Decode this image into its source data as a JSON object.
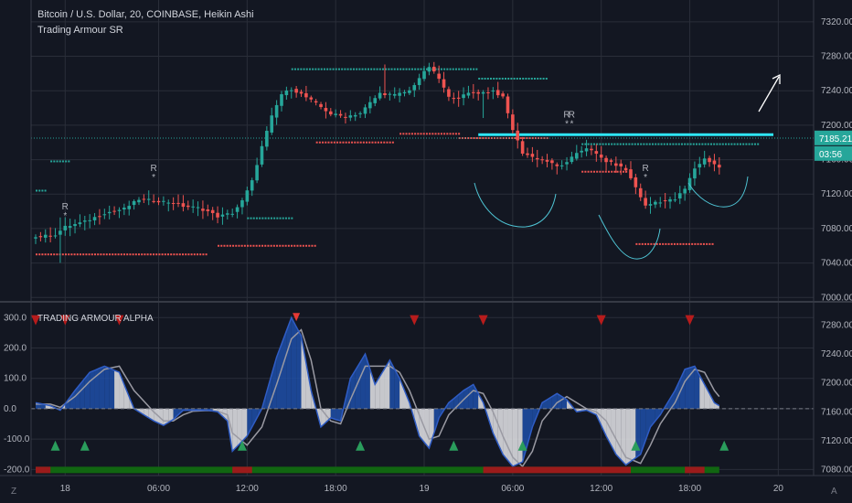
{
  "header": {
    "symbol": "Bitcoin / U.S. Dollar, 20, COINBASE, Heikin Ashi",
    "indicator": "Trading Armour SR"
  },
  "osc_panel": {
    "title": "TRADING ARMOUR ALPHA"
  },
  "price_badges": {
    "last_price": "7185.21",
    "countdown": "03:56",
    "cut_label": "7"
  },
  "corner": {
    "left": "Z",
    "right": "A"
  },
  "colors": {
    "background": "#131722",
    "grid": "#2a2e39",
    "bull": "#26a69a",
    "bear": "#ef5350",
    "dots_bull": "#26a69a",
    "dots_bear": "#ef5350",
    "fill_blue": "#1e4fa8",
    "fill_white": "#e6e6ea",
    "accent_cyan": "#2ee6f5",
    "signal_up": "#2a9d5c",
    "signal_down": "#b71c1c",
    "bar_green": "#116611",
    "bar_red": "#9b1b1b"
  },
  "chart_data": [
    {
      "type": "candlestick",
      "style": "Heikin Ashi",
      "timeframe": "20",
      "y_ticks": [
        7000,
        7040,
        7080,
        7120,
        7160,
        7200,
        7240,
        7280,
        7320
      ],
      "y_tick_labels": [
        "7000.00",
        "7040.00",
        "7080.00",
        "7120.00",
        "7160.00",
        "7200.00",
        "7240.00",
        "7280.00",
        "7320.00"
      ],
      "ylim": [
        6995,
        7340
      ],
      "x_tick_labels": [
        "18",
        "06:00",
        "12:00",
        "18:00",
        "19",
        "06:00",
        "12:00",
        "18:00",
        "20"
      ],
      "x_tick_index": [
        6,
        25,
        43,
        61,
        79,
        97,
        115,
        133,
        151
      ],
      "num_bars": 140,
      "last_price": 7185.21,
      "anchors": [
        [
          0,
          7070
        ],
        [
          4,
          7073
        ],
        [
          6,
          7082
        ],
        [
          10,
          7088
        ],
        [
          14,
          7098
        ],
        [
          18,
          7103
        ],
        [
          21,
          7114
        ],
        [
          25,
          7112
        ],
        [
          28,
          7110
        ],
        [
          30,
          7106
        ],
        [
          33,
          7104
        ],
        [
          35,
          7100
        ],
        [
          37,
          7094
        ],
        [
          40,
          7098
        ],
        [
          42,
          7112
        ],
        [
          44,
          7135
        ],
        [
          46,
          7175
        ],
        [
          48,
          7210
        ],
        [
          50,
          7236
        ],
        [
          52,
          7242
        ],
        [
          54,
          7236
        ],
        [
          57,
          7225
        ],
        [
          60,
          7213
        ],
        [
          63,
          7210
        ],
        [
          66,
          7214
        ],
        [
          68,
          7226
        ],
        [
          70,
          7237
        ],
        [
          73,
          7235
        ],
        [
          76,
          7240
        ],
        [
          78,
          7255
        ],
        [
          80,
          7268
        ],
        [
          82,
          7254
        ],
        [
          84,
          7232
        ],
        [
          86,
          7232
        ],
        [
          88,
          7237
        ],
        [
          91,
          7238
        ],
        [
          93,
          7240
        ],
        [
          95,
          7232
        ],
        [
          97,
          7195
        ],
        [
          99,
          7168
        ],
        [
          101,
          7163
        ],
        [
          104,
          7158
        ],
        [
          106,
          7152
        ],
        [
          108,
          7156
        ],
        [
          110,
          7168
        ],
        [
          112,
          7174
        ],
        [
          114,
          7166
        ],
        [
          116,
          7158
        ],
        [
          118,
          7154
        ],
        [
          120,
          7148
        ],
        [
          122,
          7128
        ],
        [
          124,
          7106
        ],
        [
          126,
          7111
        ],
        [
          128,
          7112
        ],
        [
          130,
          7114
        ],
        [
          132,
          7126
        ],
        [
          134,
          7150
        ],
        [
          136,
          7161
        ],
        [
          138,
          7155
        ],
        [
          140,
          7146
        ],
        [
          142,
          7140
        ],
        [
          143,
          7143
        ],
        [
          145,
          7154
        ],
        [
          147,
          7172
        ],
        [
          149,
          7185
        ]
      ],
      "sr_resistance": [
        {
          "from": 0,
          "to": 2,
          "price": 7124
        },
        {
          "from": 3,
          "to": 7,
          "price": 7158
        },
        {
          "from": 43,
          "to": 52,
          "price": 7092
        },
        {
          "from": 52,
          "to": 90,
          "price": 7265
        },
        {
          "from": 90,
          "to": 104,
          "price": 7254
        },
        {
          "from": 111,
          "to": 147,
          "price": 7178
        }
      ],
      "sr_support": [
        {
          "from": 0,
          "to": 35,
          "price": 7050
        },
        {
          "from": 37,
          "to": 57,
          "price": 7060
        },
        {
          "from": 57,
          "to": 73,
          "price": 7180
        },
        {
          "from": 74,
          "to": 86,
          "price": 7190
        },
        {
          "from": 86,
          "to": 104,
          "price": 7185
        },
        {
          "from": 111,
          "to": 120,
          "price": 7146
        },
        {
          "from": 122,
          "to": 138,
          "price": 7062
        }
      ],
      "sr_markers": [
        {
          "index": 6,
          "price": 7085,
          "label": "R"
        },
        {
          "index": 24,
          "price": 7130,
          "label": "R"
        },
        {
          "index": 108,
          "price": 7192,
          "label": "R"
        },
        {
          "index": 109,
          "price": 7192,
          "label": "R"
        },
        {
          "index": 124,
          "price": 7130,
          "label": "R"
        }
      ],
      "horizontal_line": {
        "price": 7189,
        "from": 90,
        "to": 150
      },
      "dotted_line": {
        "price": 7185
      }
    },
    {
      "type": "area",
      "title": "TRADING ARMOUR ALPHA",
      "y_ticks": [
        -200,
        -100,
        0,
        100,
        200,
        300
      ],
      "y_tick_labels": [
        "-200.0",
        "-100.0",
        "0.0",
        "100.0",
        "200.0",
        "300.0"
      ],
      "ylim": [
        -220,
        340
      ],
      "right_ticks": [
        "7280.00",
        "7240.00",
        "7200.00",
        "7160.00",
        "7120.00",
        "7080.00"
      ],
      "fast_anchors": [
        [
          0,
          20
        ],
        [
          3,
          10
        ],
        [
          5,
          -5
        ],
        [
          8,
          60
        ],
        [
          11,
          120
        ],
        [
          14,
          140
        ],
        [
          17,
          120
        ],
        [
          20,
          0
        ],
        [
          24,
          -40
        ],
        [
          26,
          -55
        ],
        [
          28,
          -35
        ],
        [
          30,
          -5
        ],
        [
          32,
          -5
        ],
        [
          35,
          -5
        ],
        [
          37,
          -10
        ],
        [
          39,
          -40
        ],
        [
          40,
          -140
        ],
        [
          43,
          -90
        ],
        [
          46,
          0
        ],
        [
          49,
          170
        ],
        [
          52,
          300
        ],
        [
          54,
          240
        ],
        [
          56,
          60
        ],
        [
          58,
          -60
        ],
        [
          60,
          -30
        ],
        [
          62,
          -40
        ],
        [
          64,
          100
        ],
        [
          67,
          180
        ],
        [
          69,
          80
        ],
        [
          72,
          160
        ],
        [
          74,
          100
        ],
        [
          76,
          20
        ],
        [
          78,
          -90
        ],
        [
          80,
          -130
        ],
        [
          82,
          -30
        ],
        [
          84,
          20
        ],
        [
          87,
          60
        ],
        [
          89,
          80
        ],
        [
          91,
          20
        ],
        [
          93,
          -80
        ],
        [
          95,
          -150
        ],
        [
          97,
          -190
        ],
        [
          99,
          -175
        ],
        [
          101,
          -60
        ],
        [
          103,
          20
        ],
        [
          106,
          50
        ],
        [
          108,
          30
        ],
        [
          110,
          -10
        ],
        [
          112,
          -5
        ],
        [
          114,
          -20
        ],
        [
          116,
          -90
        ],
        [
          118,
          -150
        ],
        [
          120,
          -185
        ],
        [
          123,
          -150
        ],
        [
          125,
          -60
        ],
        [
          127,
          -20
        ],
        [
          130,
          60
        ],
        [
          132,
          130
        ],
        [
          134,
          140
        ],
        [
          136,
          80
        ],
        [
          138,
          20
        ],
        [
          140,
          0
        ],
        [
          142,
          -30
        ],
        [
          143,
          20
        ],
        [
          145,
          80
        ],
        [
          147,
          110
        ]
      ],
      "slow_anchors": [
        [
          0,
          15
        ],
        [
          3,
          15
        ],
        [
          5,
          5
        ],
        [
          8,
          40
        ],
        [
          11,
          90
        ],
        [
          14,
          130
        ],
        [
          17,
          140
        ],
        [
          20,
          60
        ],
        [
          24,
          -10
        ],
        [
          26,
          -40
        ],
        [
          28,
          -40
        ],
        [
          30,
          -20
        ],
        [
          32,
          -8
        ],
        [
          35,
          -6
        ],
        [
          37,
          -8
        ],
        [
          39,
          -20
        ],
        [
          40,
          -80
        ],
        [
          43,
          -120
        ],
        [
          46,
          -60
        ],
        [
          49,
          80
        ],
        [
          52,
          230
        ],
        [
          54,
          260
        ],
        [
          56,
          160
        ],
        [
          58,
          0
        ],
        [
          60,
          -40
        ],
        [
          62,
          -50
        ],
        [
          64,
          30
        ],
        [
          67,
          140
        ],
        [
          69,
          140
        ],
        [
          72,
          140
        ],
        [
          74,
          120
        ],
        [
          76,
          60
        ],
        [
          78,
          -20
        ],
        [
          80,
          -100
        ],
        [
          82,
          -90
        ],
        [
          84,
          -20
        ],
        [
          87,
          30
        ],
        [
          89,
          60
        ],
        [
          91,
          50
        ],
        [
          93,
          -10
        ],
        [
          95,
          -90
        ],
        [
          97,
          -160
        ],
        [
          99,
          -190
        ],
        [
          101,
          -140
        ],
        [
          103,
          -40
        ],
        [
          106,
          20
        ],
        [
          108,
          40
        ],
        [
          110,
          20
        ],
        [
          112,
          0
        ],
        [
          114,
          -10
        ],
        [
          116,
          -40
        ],
        [
          118,
          -100
        ],
        [
          120,
          -160
        ],
        [
          123,
          -180
        ],
        [
          125,
          -120
        ],
        [
          127,
          -50
        ],
        [
          130,
          20
        ],
        [
          132,
          90
        ],
        [
          134,
          130
        ],
        [
          136,
          120
        ],
        [
          138,
          60
        ],
        [
          140,
          20
        ],
        [
          142,
          -10
        ],
        [
          143,
          -10
        ],
        [
          145,
          20
        ],
        [
          147,
          60
        ]
      ],
      "signals_down": [
        0,
        6,
        17,
        77,
        91,
        115,
        133
      ],
      "signals_up": [
        4,
        10,
        42,
        66,
        85,
        99,
        122,
        140
      ],
      "signal_top": [
        53
      ],
      "state_bar_red": [
        [
          0,
          3
        ],
        [
          40,
          44
        ],
        [
          91,
          121
        ],
        [
          132,
          136
        ]
      ]
    }
  ]
}
